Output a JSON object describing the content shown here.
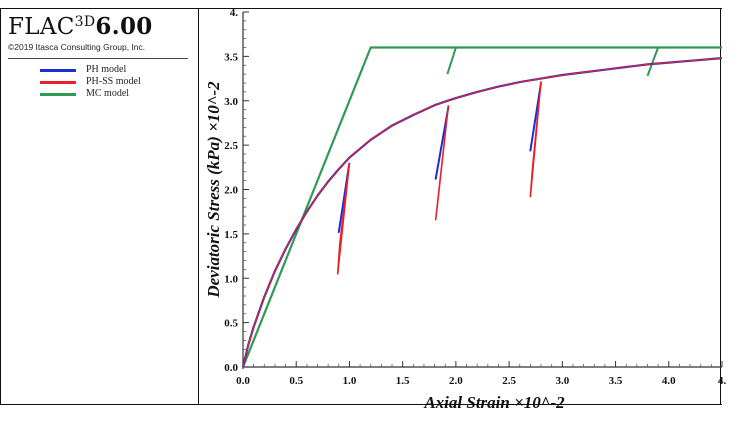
{
  "logo": {
    "product": "FLAC",
    "superscript": "3D",
    "version": "6.00",
    "copyright": "©2019 Itasca Consulting Group, Inc."
  },
  "legend": [
    {
      "label": "PH model",
      "color": "#1b2ed6"
    },
    {
      "label": "PH-SS model",
      "color": "#e8202a"
    },
    {
      "label": "MC model",
      "color": "#2e9a55"
    }
  ],
  "chart_data": {
    "type": "line",
    "title": "",
    "xlabel": "Axial Strain ×10^-2",
    "ylabel": "Deviatoric Stress (kPa) ×10^-2",
    "xlim": [
      0.0,
      4.5
    ],
    "ylim": [
      0.0,
      4.0
    ],
    "x_ticks": [
      "0.0",
      "0.5",
      "1.0",
      "1.5",
      "2.0",
      "2.5",
      "3.0",
      "3.5",
      "4.0",
      "4."
    ],
    "y_ticks": [
      "0.0",
      "0.5",
      "1.0",
      "1.5",
      "2.0",
      "2.5",
      "3.0",
      "3.5",
      "4."
    ],
    "grid": false,
    "legend_position": "top-left",
    "series": [
      {
        "name": "PH model",
        "x": [
          0.0,
          0.05,
          0.1,
          0.2,
          0.3,
          0.4,
          0.5,
          0.6,
          0.7,
          0.8,
          0.9,
          1.0,
          1.2,
          1.4,
          1.6,
          1.8,
          1.9,
          2.0,
          2.2,
          2.4,
          2.6,
          2.8,
          3.0,
          3.2,
          3.4,
          3.6,
          3.8,
          4.0,
          4.2,
          4.4,
          4.5
        ],
        "y": [
          0.0,
          0.25,
          0.45,
          0.79,
          1.08,
          1.33,
          1.55,
          1.75,
          1.93,
          2.09,
          2.23,
          2.36,
          2.56,
          2.72,
          2.84,
          2.95,
          2.99,
          3.03,
          3.1,
          3.16,
          3.21,
          3.25,
          3.29,
          3.32,
          3.35,
          3.38,
          3.41,
          3.43,
          3.45,
          3.47,
          3.48
        ],
        "unloading_loops": [
          {
            "x": [
              1.0,
              0.9,
              1.0
            ],
            "y": [
              2.3,
              1.52,
              2.3
            ]
          },
          {
            "x": [
              1.93,
              1.81,
              1.93
            ],
            "y": [
              2.93,
              2.12,
              2.93
            ]
          },
          {
            "x": [
              2.8,
              2.7,
              2.8
            ],
            "y": [
              3.2,
              2.44,
              3.2
            ]
          }
        ]
      },
      {
        "name": "PH-SS model",
        "x": [
          0.0,
          0.05,
          0.1,
          0.2,
          0.3,
          0.4,
          0.5,
          0.6,
          0.7,
          0.8,
          0.9,
          1.0,
          1.2,
          1.4,
          1.6,
          1.8,
          1.9,
          2.0,
          2.2,
          2.4,
          2.6,
          2.8,
          3.0,
          3.2,
          3.4,
          3.6,
          3.8,
          4.0,
          4.2,
          4.4,
          4.5
        ],
        "y": [
          0.0,
          0.25,
          0.45,
          0.79,
          1.08,
          1.33,
          1.55,
          1.75,
          1.93,
          2.09,
          2.23,
          2.36,
          2.56,
          2.72,
          2.84,
          2.95,
          2.99,
          3.03,
          3.1,
          3.16,
          3.21,
          3.25,
          3.29,
          3.32,
          3.35,
          3.38,
          3.41,
          3.43,
          3.45,
          3.47,
          3.48
        ],
        "unloading_loops": [
          {
            "x": [
              1.0,
              0.91,
              0.89,
              1.0
            ],
            "y": [
              2.3,
              1.4,
              1.05,
              2.3
            ]
          },
          {
            "x": [
              1.93,
              1.84,
              1.81,
              1.93
            ],
            "y": [
              2.95,
              1.98,
              1.66,
              2.95
            ]
          },
          {
            "x": [
              2.8,
              2.72,
              2.7,
              2.8
            ],
            "y": [
              3.22,
              2.24,
              1.92,
              3.22
            ]
          }
        ]
      },
      {
        "name": "MC model",
        "x": [
          0.0,
          1.2,
          4.5
        ],
        "y": [
          0.0,
          3.6,
          3.6
        ],
        "unloading_loops": [
          {
            "x": [
              2.0,
              1.92
            ],
            "y": [
              3.6,
              3.3
            ]
          },
          {
            "x": [
              3.9,
              3.8
            ],
            "y": [
              3.6,
              3.28
            ]
          }
        ]
      }
    ]
  }
}
